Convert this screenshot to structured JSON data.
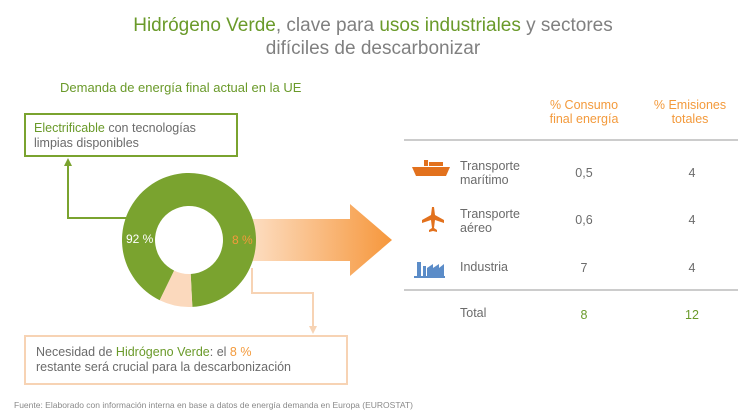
{
  "title": {
    "part1": "Hidrógeno Verde",
    "part2": ", clave para ",
    "part3": "usos industriales",
    "part4": " y sectores",
    "line2": "difíciles de descarbonizar"
  },
  "subtitle": "Demanda de energía final actual en la UE",
  "box_top": {
    "highlight": "Electrificable",
    "rest": " con tecnologías",
    "line2": "limpias disponibles"
  },
  "box_bottom": {
    "a": "Necesidad de ",
    "b": "Hidrógeno Verde",
    "c": ": el ",
    "d": "8 %",
    "line2": "restante será crucial para la descarbonización"
  },
  "source": "Fuente: Elaborado con información interna en base a datos de energía demanda en Europa (EUROSTAT)",
  "colors": {
    "green": "#7aa32f",
    "orange": "#f39a3c",
    "peach": "#fbd9bd",
    "gray": "#6b6b6b",
    "blue_icon": "#5b8cc8"
  },
  "chart_data": {
    "type": "pie",
    "style": "donut",
    "categories": [
      "Electrificable",
      "Hidrógeno Verde"
    ],
    "values": [
      92,
      8
    ],
    "labels": [
      "92 %",
      "8 %"
    ],
    "colors": [
      "#7aa32f",
      "#fbd9bd"
    ]
  },
  "table": {
    "headers": [
      [
        "% Consumo",
        "final energía"
      ],
      [
        "% Emisiones",
        "totales"
      ]
    ],
    "rows": [
      {
        "icon": "ship-icon",
        "label": [
          "Transporte",
          "marítimo"
        ],
        "consumo": "0,5",
        "emisiones": "4"
      },
      {
        "icon": "plane-icon",
        "label": [
          "Transporte",
          "aéreo"
        ],
        "consumo": "0,6",
        "emisiones": "4"
      },
      {
        "icon": "factory-icon",
        "label": [
          "Industria"
        ],
        "consumo": "7",
        "emisiones": "4"
      }
    ],
    "total": {
      "label": "Total",
      "consumo": "8",
      "emisiones": "12"
    }
  }
}
